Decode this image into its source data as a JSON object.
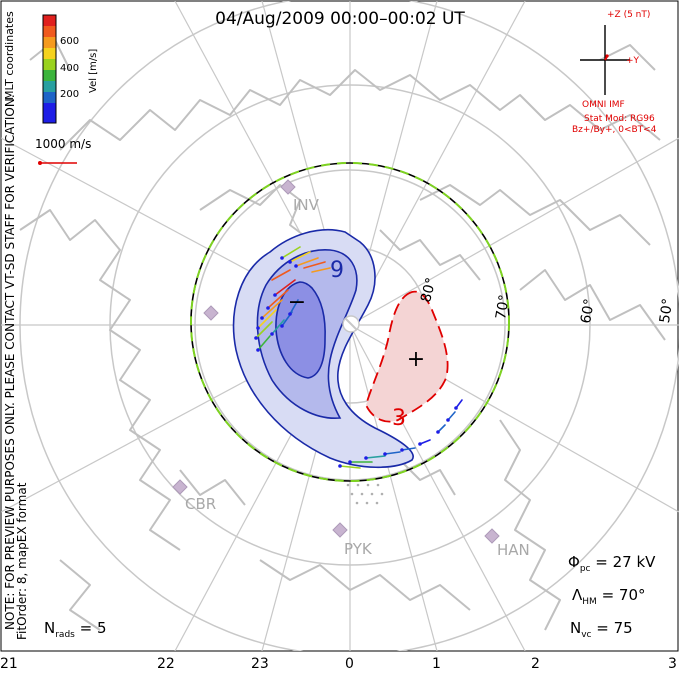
{
  "title": "04/Aug/2009 00:00–00:02 UT",
  "colorbar": {
    "ticks": [
      "600",
      "400",
      "200"
    ],
    "label": "Vel [m/s]",
    "colors": [
      "#e0201e",
      "#f05a1e",
      "#f59a1e",
      "#f5d21e",
      "#9ad21e",
      "#3cb43c",
      "#28a0a0",
      "#1e64c8",
      "#1e1ee6"
    ]
  },
  "vector_scale": "1000 m/s",
  "coords_label": "MLT coordinates",
  "left_note": "NOTE: FOR PREVIEW PURPOSES ONLY. PLEASE CONTACT VT-SD STAFF FOR VERIFICATION.",
  "fit_note": "FitOrder: 8, mapEX format",
  "imf": {
    "z_label": "+Z (5 nT)",
    "y_label": "+Y",
    "source": "OMNI IMF",
    "model": "Stat Mod: RG96",
    "condition": "Bz+/By+, 0<BT<4"
  },
  "latitude_labels": [
    "80°",
    "70°",
    "60°",
    "50°"
  ],
  "stations": [
    "INV",
    "CBR",
    "PYK",
    "HAN"
  ],
  "contours": {
    "neg_label": "9",
    "pos_label": "3",
    "neg_sign": "−",
    "pos_sign": "+"
  },
  "stats": {
    "phi_symbol": "Φ",
    "phi_sub": "pc",
    "phi_value": "= 27 kV",
    "lambda_symbol": "Λ",
    "lambda_sub": "HM",
    "lambda_value": "= 70°",
    "nvc_symbol": "N",
    "nvc_sub": "vc",
    "nvc_value": "= 75"
  },
  "nrads": {
    "symbol": "N",
    "sub": "rads",
    "value": "= 5"
  },
  "mlt_labels": [
    "21",
    "22",
    "23",
    "0",
    "1",
    "2",
    "3"
  ],
  "colors": {
    "red": "#e00000",
    "blue_contour": "#1a2aa8",
    "neg_fill": "#7070e0",
    "pos_fill": "#f4d4d4",
    "boundary_green": "#7ed321",
    "grid": "#c8c8c8",
    "coast": "#c0c0c0"
  }
}
